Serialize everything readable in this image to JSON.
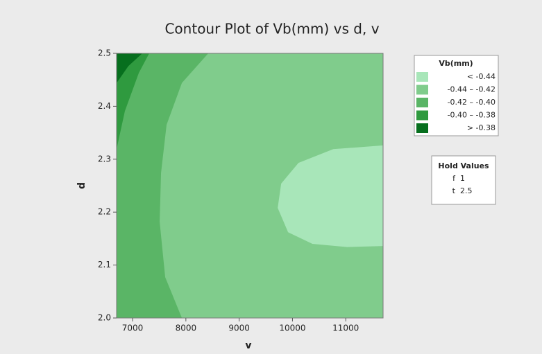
{
  "chart_data": {
    "type": "contour",
    "title": "Contour Plot of Vb(mm) vs d, v",
    "x_label": "v",
    "y_label": "d",
    "xlim": [
      6700,
      11700
    ],
    "ylim": [
      2.0,
      2.5
    ],
    "xticks": [
      7000,
      8000,
      9000,
      10000,
      11000
    ],
    "yticks": [
      {
        "value": 2.0,
        "label": "2.0"
      },
      {
        "value": 2.1,
        "label": "2.1"
      },
      {
        "value": 2.2,
        "label": "2.2"
      },
      {
        "value": 2.3,
        "label": "2.3"
      },
      {
        "value": 2.4,
        "label": "2.4"
      },
      {
        "value": 2.5,
        "label": "2.5"
      }
    ],
    "color": "#80cc8c",
    "contours": [
      {
        "level": -0.44,
        "color": "#a8e6b9",
        "x": [
          11700,
          10765,
          10113,
          9788,
          9723,
          9918,
          10374,
          11026,
          11700
        ],
        "y": [
          2.326,
          2.319,
          2.293,
          2.254,
          2.208,
          2.162,
          2.14,
          2.134,
          2.136
        ]
      },
      {
        "level": -0.42,
        "color": "#5ab566",
        "x": [
          8420,
          7925,
          7638,
          7534,
          7508,
          7612,
          7925
        ],
        "y": [
          2.5,
          2.444,
          2.365,
          2.274,
          2.182,
          2.077,
          2.0
        ]
      },
      {
        "level": -0.4,
        "color": "#2f9a3f",
        "x": [
          7312,
          7117,
          6856,
          6700
        ],
        "y": [
          2.5,
          2.463,
          2.391,
          2.319
        ]
      },
      {
        "level": -0.38,
        "color": "#076f1e",
        "x": [
          7182,
          6921,
          6700
        ],
        "y": [
          2.5,
          2.476,
          2.444
        ]
      }
    ],
    "legend": {
      "title": "Vb(mm)",
      "items": [
        {
          "label": "<  -0.44",
          "color": "#a8e6b9"
        },
        {
          "label": "-0.44  –  -0.42",
          "color": "#80cc8c"
        },
        {
          "label": "-0.42  –  -0.40",
          "color": "#5ab566"
        },
        {
          "label": "-0.40  –  -0.38",
          "color": "#2f9a3f"
        },
        {
          "label": ">  -0.38",
          "color": "#076f1e"
        }
      ]
    },
    "hold_values": {
      "title": "Hold Values",
      "items": [
        {
          "name": "f",
          "value": 1
        },
        {
          "name": "t",
          "value": 2.5
        }
      ]
    }
  }
}
